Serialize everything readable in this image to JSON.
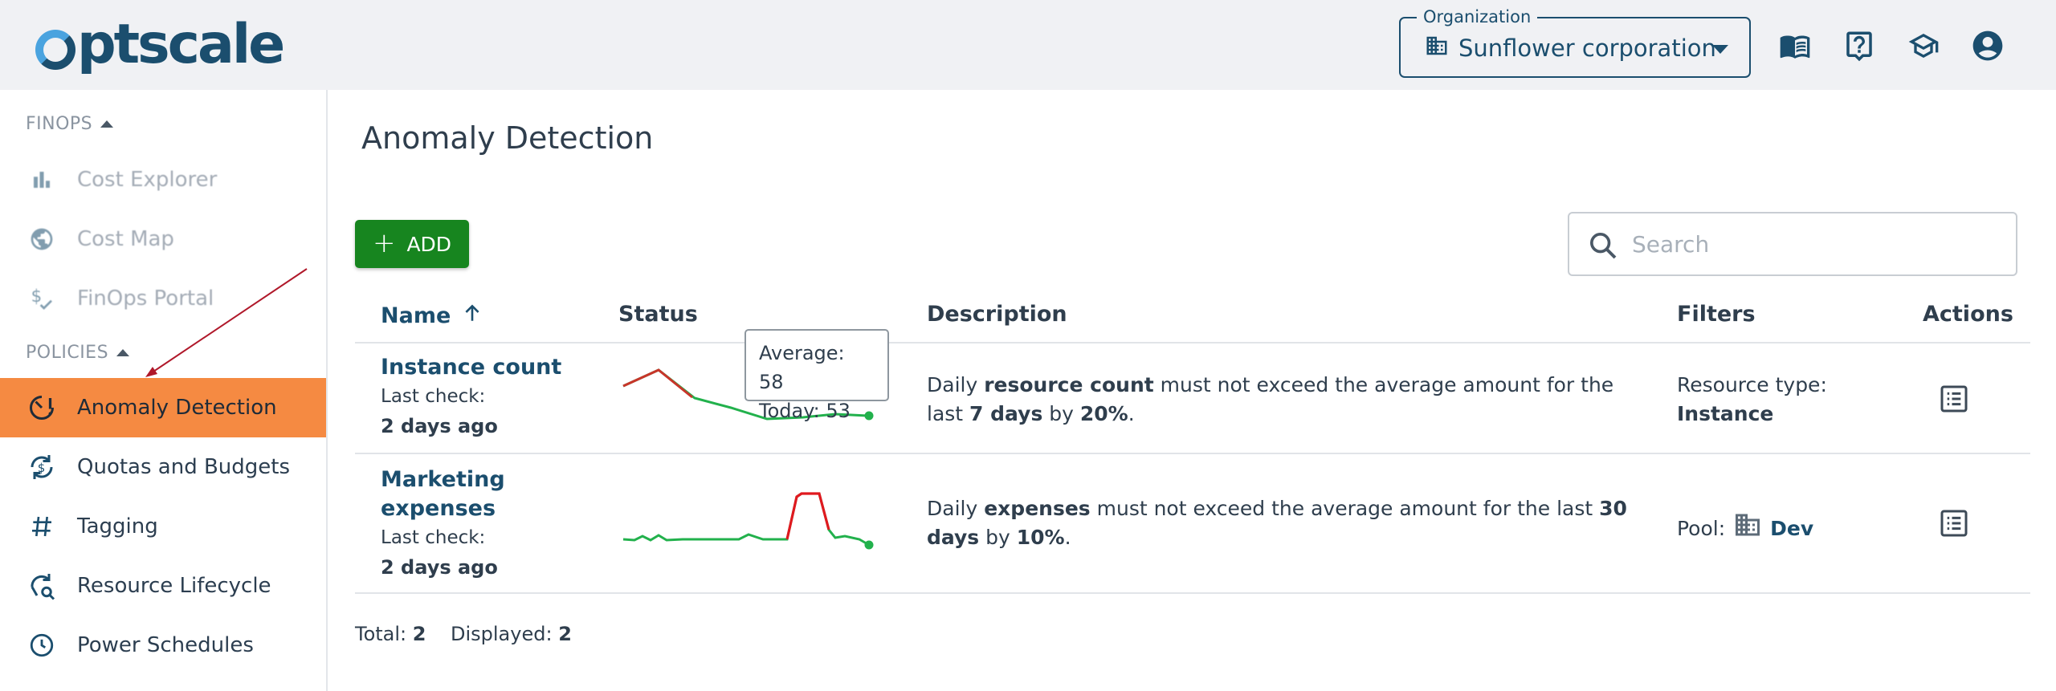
{
  "header": {
    "logo_text": "optscale",
    "organization": {
      "legend": "Organization",
      "value": "Sunflower corporation"
    },
    "icons": [
      "documentation-icon",
      "help-icon",
      "academy-icon",
      "profile-icon"
    ]
  },
  "sidebar": {
    "section_finops": "FINOPS",
    "section_policies": "POLICIES",
    "finops_items": [
      {
        "label": "Cost Explorer",
        "icon": "bar-chart-icon"
      },
      {
        "label": "Cost Map",
        "icon": "globe-icon"
      },
      {
        "label": "FinOps Portal",
        "icon": "dollar-check-icon"
      }
    ],
    "policy_items": [
      {
        "label": "Anomaly Detection",
        "icon": "anomaly-icon",
        "active": true
      },
      {
        "label": "Quotas and Budgets",
        "icon": "budget-icon"
      },
      {
        "label": "Tagging",
        "icon": "hash-icon"
      },
      {
        "label": "Resource Lifecycle",
        "icon": "lifecycle-icon"
      },
      {
        "label": "Power Schedules",
        "icon": "clock-icon"
      }
    ],
    "active_color": "#f58a42"
  },
  "main": {
    "title": "Anomaly Detection",
    "add_label": "ADD",
    "search_placeholder": "Search",
    "columns": {
      "name": "Name",
      "status": "Status",
      "description": "Description",
      "filters": "Filters",
      "actions": "Actions"
    },
    "rows": [
      {
        "name": "Instance count",
        "last_check_label": "Last check:",
        "last_check_value": "2 days ago",
        "desc": {
          "p1": "Daily ",
          "b1": "resource count",
          "p2": " must not exceed the average amount for the last ",
          "b2": "7 days",
          "p3": " by ",
          "b3": "20%",
          "p4": "."
        },
        "filter_label": "Resource type:",
        "filter_value": "Instance"
      },
      {
        "name_line1": "Marketing",
        "name_line2": "expenses",
        "last_check_label": "Last check:",
        "last_check_value": "2 days ago",
        "desc": {
          "p1": "Daily ",
          "b1": "expenses",
          "p2": " must not exceed the average amount for the last ",
          "b2": "30",
          "p3": "days",
          "p4": " by ",
          "b3": "10%",
          "p5": "."
        },
        "filter_label": "Pool:",
        "filter_value": "Dev"
      }
    ],
    "tooltip": {
      "average_label": "Average:",
      "average": "58",
      "today_label": "Today:",
      "today": "53"
    },
    "footer": {
      "total_label": "Total:",
      "total": "2",
      "displayed_label": "Displayed:",
      "displayed": "2"
    }
  },
  "colors": {
    "brand": "#1b4e6e",
    "add_button": "#17851f",
    "spark_ok": "#22b14c",
    "spark_anomaly": "#e0191f",
    "annotation_arrow": "#b0182a"
  }
}
